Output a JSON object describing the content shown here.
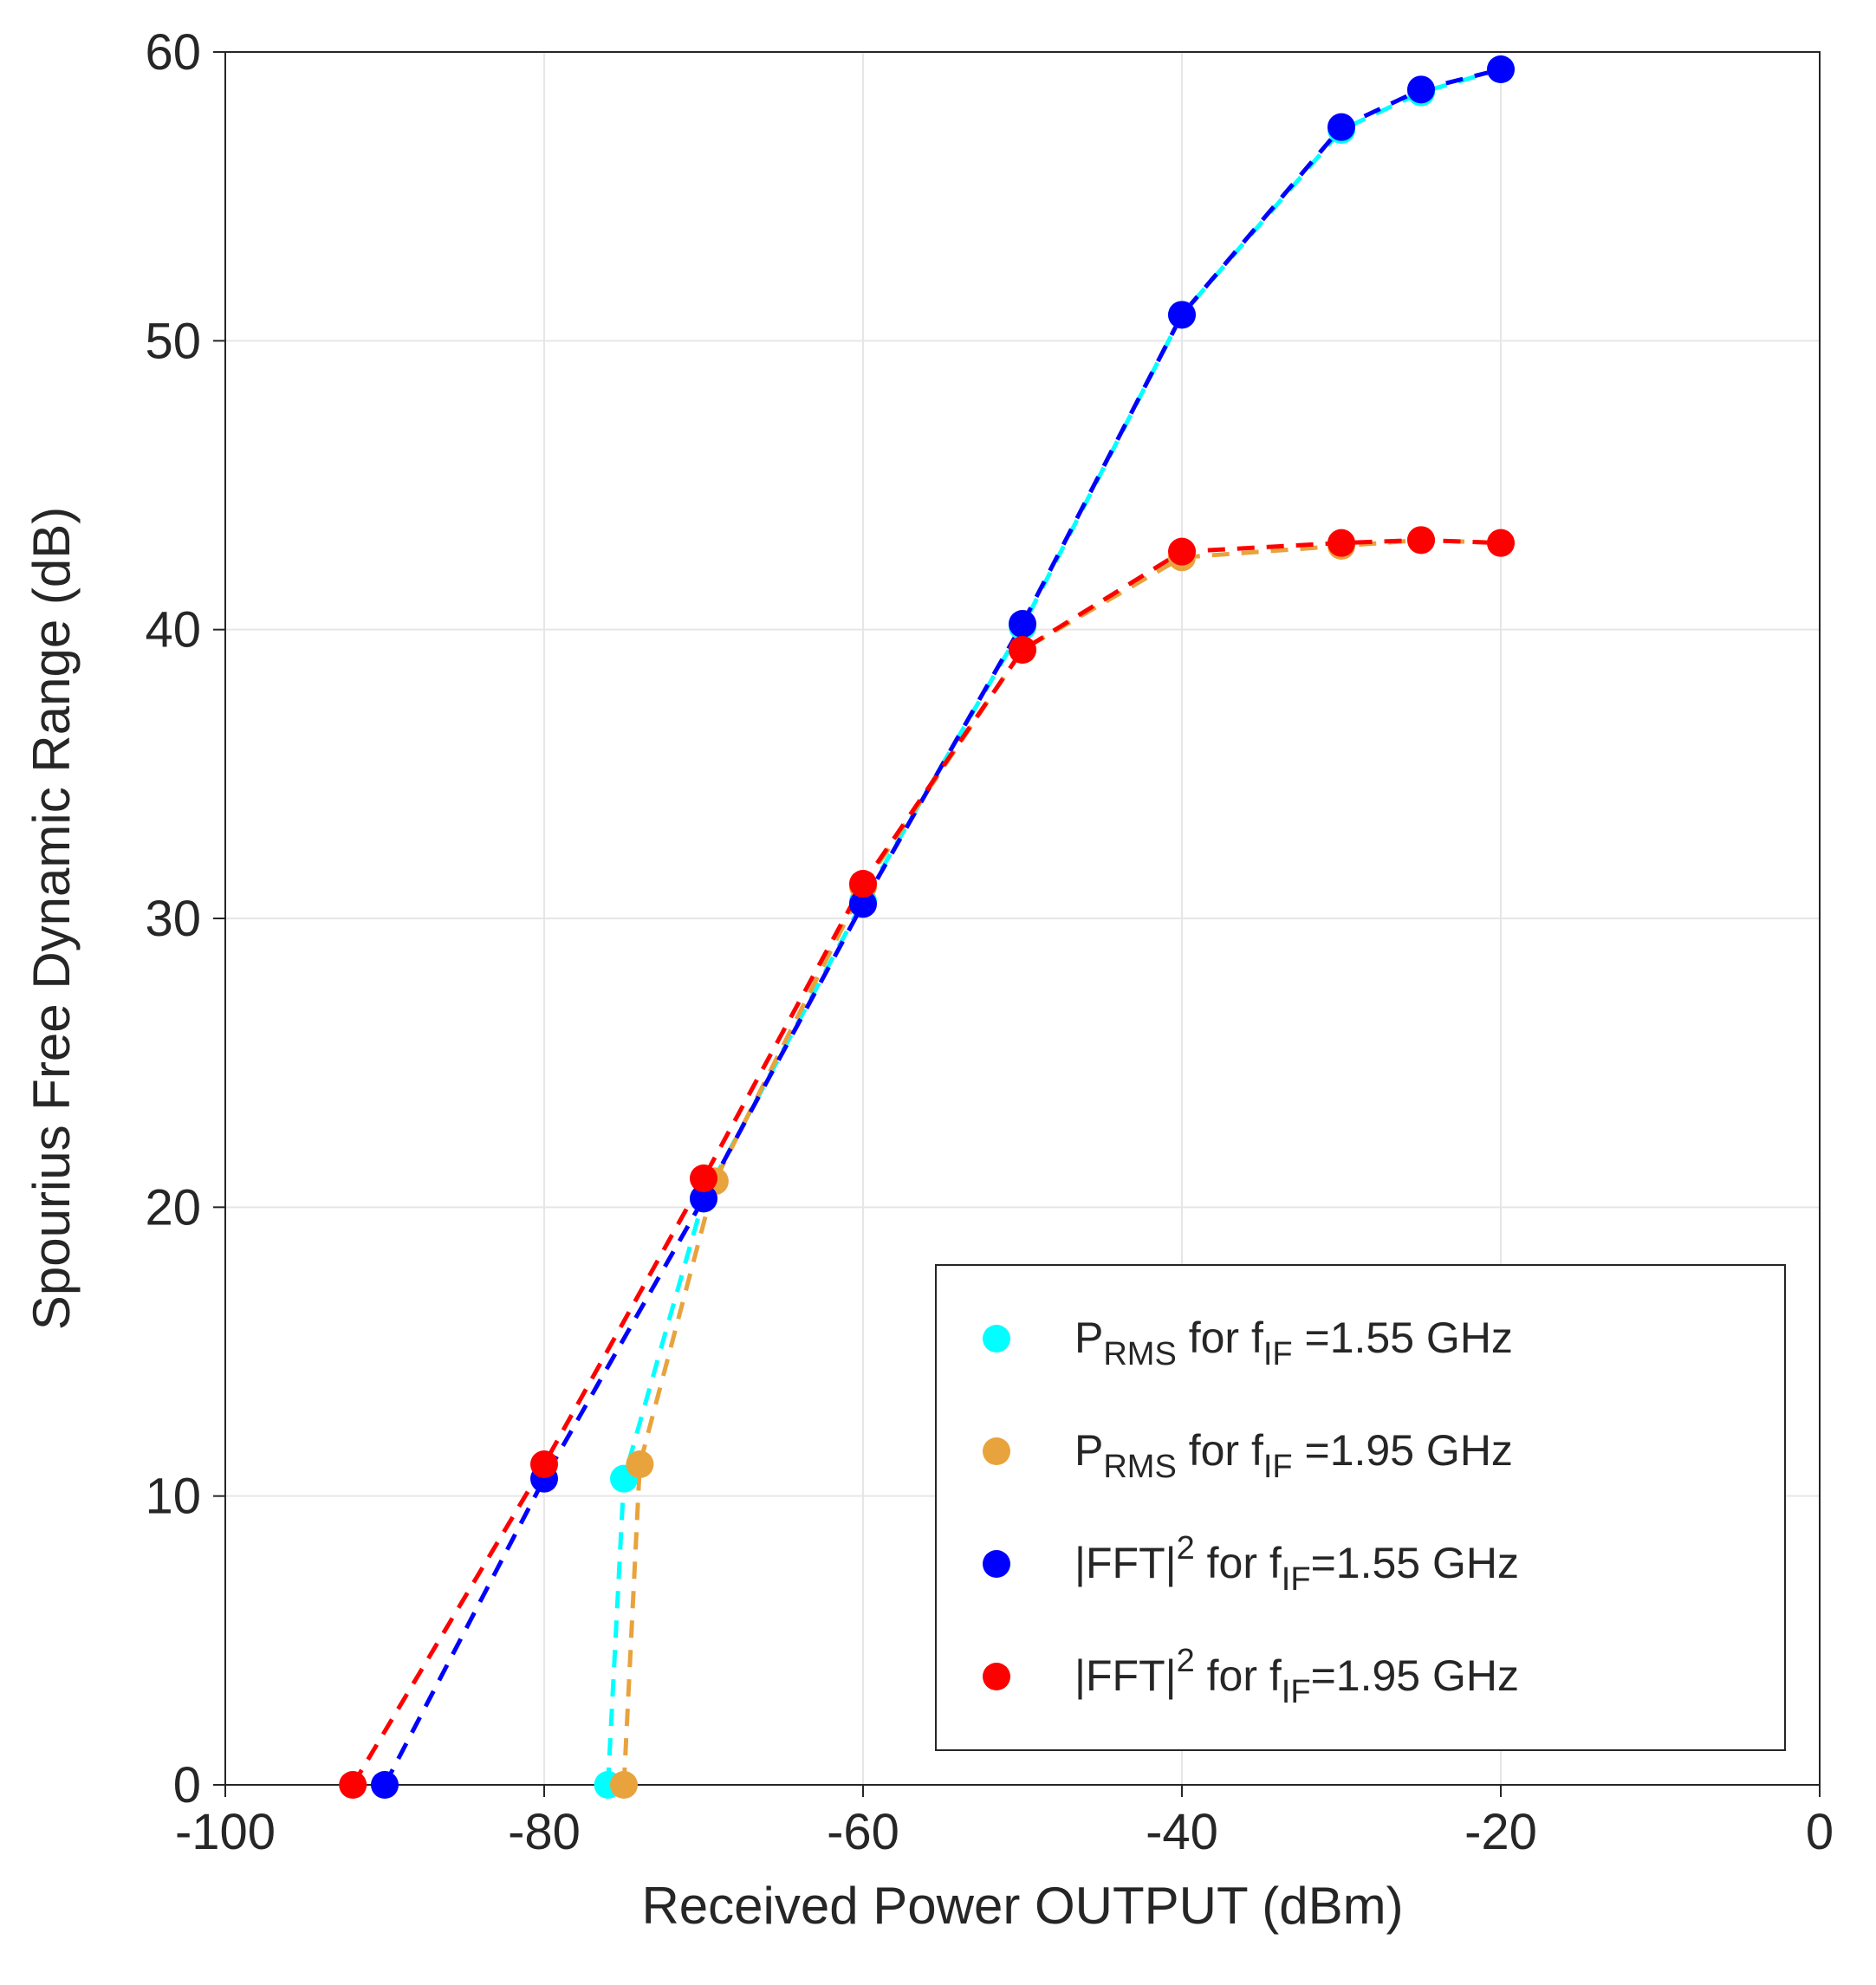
{
  "chart": {
    "type": "line-scatter",
    "background_color": "#ffffff",
    "plot_background_color": "#ffffff",
    "grid_color": "#e6e6e6",
    "axis_color": "#262626",
    "xlabel": "Received Power OUTPUT (dBm)",
    "ylabel": "Spourius Free Dynamic Range (dB)",
    "label_fontsize": 60,
    "tick_fontsize": 58,
    "xlim": [
      -100,
      0
    ],
    "ylim": [
      0,
      60
    ],
    "xtick_step": 20,
    "ytick_step": 10,
    "xticks": [
      -100,
      -80,
      -60,
      -40,
      -20,
      0
    ],
    "yticks": [
      0,
      10,
      20,
      30,
      40,
      50,
      60
    ],
    "line_dash": [
      20,
      14
    ],
    "line_width": 5,
    "marker_radius": 16,
    "series": [
      {
        "id": "prms_155",
        "color": "#00ffff",
        "label_prefix": "P",
        "label_sub1": "RMS",
        "label_mid": " for f",
        "label_sub2": "IF",
        "label_suffix": "  =1.55 GHz",
        "x": [
          -76,
          -75,
          -70,
          -60,
          -50,
          -40,
          -30,
          -25,
          -20
        ],
        "y": [
          0,
          10.6,
          20.3,
          30.6,
          40.1,
          50.9,
          57.3,
          58.6,
          59.4
        ]
      },
      {
        "id": "prms_195",
        "color": "#e8a33d",
        "label_prefix": "P",
        "label_sub1": "RMS",
        "label_mid": " for f",
        "label_sub2": "IF",
        "label_suffix": "  =1.95 GHz",
        "x": [
          -75,
          -74,
          -69.3,
          -60,
          -50,
          -40,
          -30,
          -25,
          -20
        ],
        "y": [
          0,
          11.1,
          20.9,
          31.1,
          39.3,
          42.5,
          42.9,
          43.1,
          43.0
        ]
      },
      {
        "id": "fft_155",
        "color": "#0000ff",
        "label_prefix": "|FFT|",
        "label_sup": "2",
        "label_mid": " for f",
        "label_sub2": "IF",
        "label_suffix": "=1.55 GHz",
        "x": [
          -90,
          -80,
          -70,
          -60,
          -50,
          -40,
          -30,
          -25,
          -20
        ],
        "y": [
          0,
          10.6,
          20.3,
          30.5,
          40.2,
          50.9,
          57.4,
          58.7,
          59.4
        ]
      },
      {
        "id": "fft_195",
        "color": "#ff0000",
        "label_prefix": "|FFT|",
        "label_sup": "2",
        "label_mid": " for f",
        "label_sub2": "IF",
        "label_suffix": "=1.95 GHz",
        "x": [
          -92,
          -80,
          -70,
          -60,
          -50,
          -40,
          -30,
          -25,
          -20
        ],
        "y": [
          0,
          11.1,
          21.0,
          31.2,
          39.3,
          42.7,
          43.0,
          43.1,
          43.0
        ]
      }
    ],
    "legend": {
      "position": "lower-right-inside",
      "fontsize": 50,
      "marker_radius": 16,
      "background": "#ffffff",
      "border": "#262626"
    }
  }
}
